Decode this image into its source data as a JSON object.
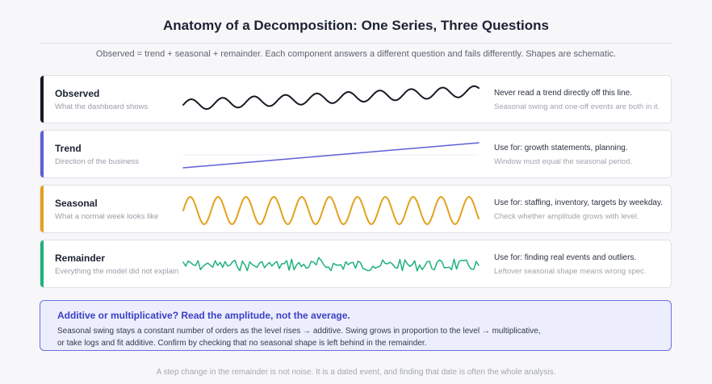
{
  "title": "Anatomy of a Decomposition: One Series, Three Questions",
  "subtitle": "Observed = trend + seasonal + remainder. Each component answers a different question and fails differently. Shapes are schematic.",
  "components": [
    {
      "name": "Observed",
      "description": "What the dashboard shows",
      "use_for": "Never read a trend directly off this line.",
      "caveat": "Seasonal swing and one-off events are both in it.",
      "color": "#161a24",
      "shape": "observed"
    },
    {
      "name": "Trend",
      "description": "Direction of the business",
      "use_for": "Use for: growth statements, planning.",
      "caveat": "Window must equal the seasonal period.",
      "color": "#5f5fd6",
      "shape": "trend"
    },
    {
      "name": "Seasonal",
      "description": "What a normal week looks like",
      "use_for": "Use for: staffing, inventory, targets by weekday.",
      "caveat": "Check whether amplitude grows with level.",
      "color": "#e3a11c",
      "shape": "seasonal"
    },
    {
      "name": "Remainder",
      "description": "Everything the model did not explain",
      "use_for": "Use for: finding real events and outliers.",
      "caveat": "Leftover seasonal shape means wrong spec.",
      "color": "#1fb27a",
      "shape": "remainder"
    }
  ],
  "callout": {
    "title": "Additive or multiplicative? Read the amplitude, not the average.",
    "line1": "Seasonal swing stays a constant number of orders as the level rises → additive. Swing grows in proportion to the level → multiplicative,",
    "line2": "or take logs and fit additive. Confirm by checking that no seasonal shape is left behind in the remainder."
  },
  "footer": "A step change in the remainder is not noise. It is a dated event, and finding that date is often the whole analysis."
}
